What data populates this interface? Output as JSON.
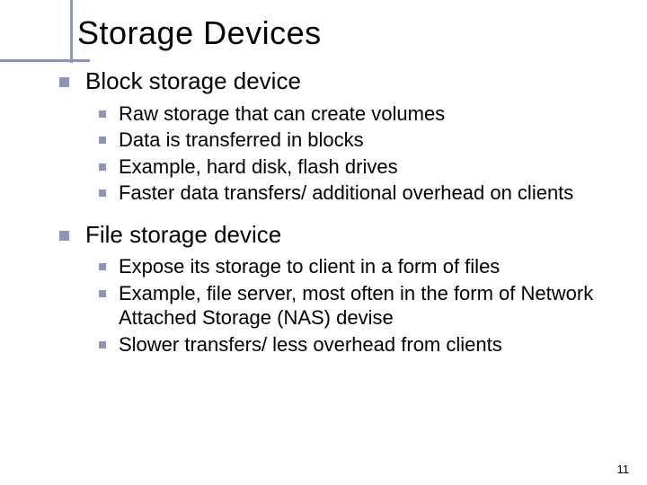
{
  "title": "Storage Devices",
  "colors": {
    "accent": "#8a95b8",
    "text": "#000000",
    "background": "#ffffff"
  },
  "typography": {
    "title_fontsize": 36,
    "level1_fontsize": 26,
    "level2_fontsize": 22,
    "pagenum_fontsize": 13,
    "font_family": "Verdana"
  },
  "bullets": {
    "lg_size": 11,
    "sm_size": 8
  },
  "sections": [
    {
      "heading": "Block storage device",
      "items": [
        "Raw storage that can create volumes",
        "Data is transferred in blocks",
        "Example, hard disk, flash drives",
        "Faster data transfers/ additional overhead on clients"
      ]
    },
    {
      "heading": "File storage device",
      "items": [
        "Expose its storage to client in a form of files",
        "Example, file server, most often in the form of Network Attached Storage (NAS) devise",
        "Slower transfers/ less overhead from clients"
      ]
    }
  ],
  "page_number": "11"
}
